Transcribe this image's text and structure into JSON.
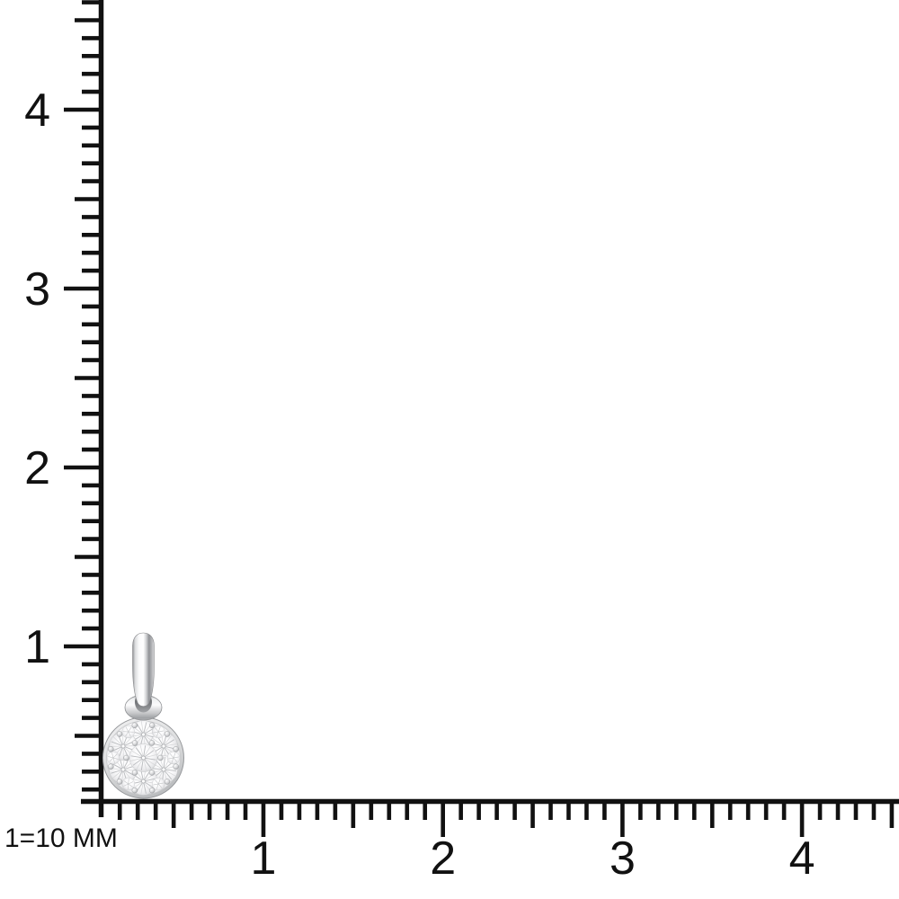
{
  "meta": {
    "background": "#ffffff",
    "ink": "#111111",
    "description": "White gold round diamond cluster pendant photographed against millimeter scale rulers"
  },
  "scale_note": {
    "text": "1=10 MM"
  },
  "rulers": {
    "unit_equals_mm": 10,
    "vertical": {
      "major_labels": [
        "1",
        "2",
        "3",
        "4"
      ],
      "minor_ticks_per_unit": 10,
      "value_range": [
        0.2,
        4.6
      ]
    },
    "horizontal": {
      "major_labels": [
        "1",
        "2",
        "3",
        "4"
      ],
      "minor_ticks_per_unit": 10,
      "value_range": [
        0.2,
        4.5
      ]
    }
  },
  "product": {
    "kind": "diamond-cluster-pendant",
    "approx_width_mm": 4.5,
    "approx_height_mm": 9.3,
    "metal_colors": {
      "bright": "#ffffff",
      "light": "#e9eaeb",
      "mid": "#b9babc",
      "dark": "#8f9194",
      "deep": "#55575a"
    },
    "diamond_colors": {
      "bright": "#ffffff",
      "facet": "#b8babd",
      "edge": "#d2d3d5"
    }
  }
}
